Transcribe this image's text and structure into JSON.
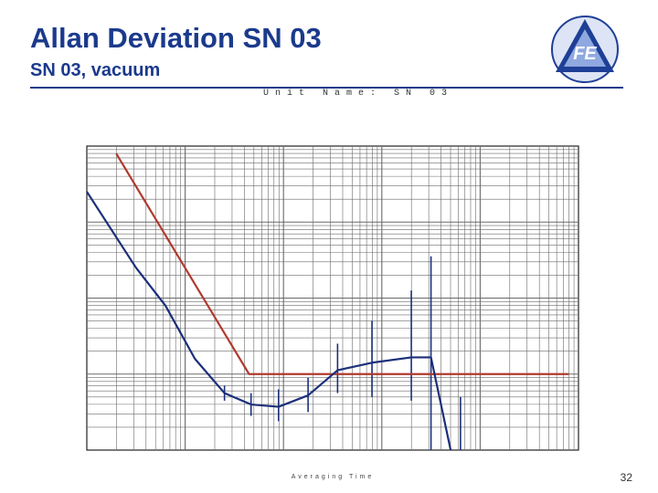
{
  "slide": {
    "title": "Allan Deviation SN 03",
    "subtitle": "SN 03, vacuum",
    "page_number": "32",
    "logo_text": "FE",
    "colors": {
      "title": "#1b3a8c",
      "logo_dark": "#1e3f96",
      "logo_light": "#8fa8e0",
      "spec_line": "#b03a2e",
      "measured_line": "#1b2f7a",
      "grid": "#6a6a6a"
    }
  },
  "chart_data": {
    "type": "line",
    "unit_label": "Unit Name: SN 03",
    "xlabel": "Averaging Time",
    "x_scale": "log",
    "y_scale": "log",
    "x_decades": 5,
    "y_decades": 4,
    "grid": true,
    "series": [
      {
        "role": "specification",
        "color": "#b03a2e",
        "points": [
          [
            0.3,
            3.9
          ],
          [
            1.65,
            1.0
          ],
          [
            4.9,
            1.0
          ]
        ]
      },
      {
        "role": "measured",
        "color": "#1b2f7a",
        "points": [
          [
            0.0,
            3.4
          ],
          [
            0.5,
            2.4
          ],
          [
            0.8,
            1.9
          ],
          [
            1.1,
            1.2
          ],
          [
            1.4,
            0.75
          ],
          [
            1.67,
            0.6
          ],
          [
            1.95,
            0.57
          ],
          [
            2.25,
            0.72
          ],
          [
            2.55,
            1.05
          ],
          [
            2.9,
            1.15
          ],
          [
            3.3,
            1.22
          ],
          [
            3.5,
            1.22
          ],
          [
            3.7,
            0.0
          ]
        ]
      }
    ],
    "error_bars": [
      [
        1.4,
        0.65,
        0.85
      ],
      [
        1.67,
        0.45,
        0.75
      ],
      [
        1.95,
        0.38,
        0.8
      ],
      [
        2.25,
        0.5,
        0.95
      ],
      [
        2.55,
        0.75,
        1.4
      ],
      [
        2.9,
        0.7,
        1.7
      ],
      [
        3.3,
        0.65,
        2.1
      ],
      [
        3.5,
        0.0,
        2.55
      ],
      [
        3.8,
        0.0,
        0.7
      ]
    ]
  }
}
